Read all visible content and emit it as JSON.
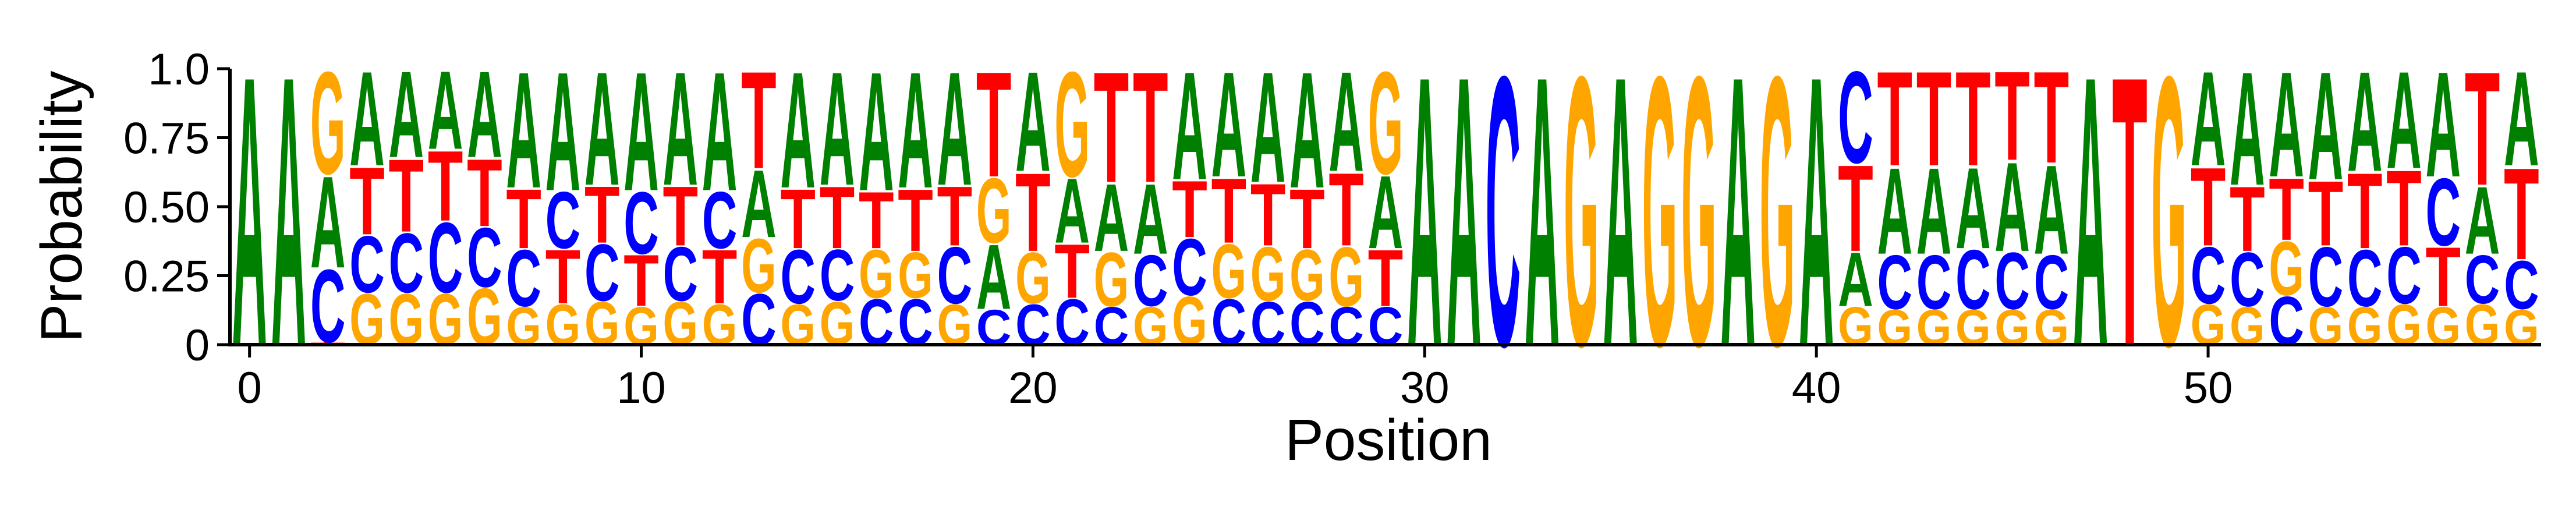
{
  "chart_data": {
    "type": "sequence-logo",
    "title": "",
    "xlabel": "Position",
    "ylabel": "Probability",
    "xlim": [
      -0.5,
      58.5
    ],
    "ylim": [
      0,
      1
    ],
    "xticks": [
      0,
      10,
      20,
      30,
      40,
      50
    ],
    "yticks": [
      0,
      0.25,
      0.5,
      0.75,
      1.0
    ],
    "ytick_labels": [
      "0",
      "0.25",
      "0.50",
      "0.75",
      "1.0"
    ],
    "grid": false,
    "legend": "none",
    "base_colors": {
      "A": "#008000",
      "C": "#0000ff",
      "G": "#ffa500",
      "T": "#ff0000"
    },
    "positions": [
      {
        "A": 1.0,
        "C": 0.0,
        "G": 0.0,
        "T": 0.0
      },
      {
        "A": 1.0,
        "C": 0.0,
        "G": 0.0,
        "T": 0.0
      },
      {
        "A": 0.34,
        "C": 0.27,
        "G": 0.38,
        "T": 0.01
      },
      {
        "A": 0.35,
        "C": 0.21,
        "G": 0.19,
        "T": 0.25
      },
      {
        "A": 0.32,
        "C": 0.22,
        "G": 0.19,
        "T": 0.27
      },
      {
        "A": 0.29,
        "C": 0.26,
        "G": 0.19,
        "T": 0.26
      },
      {
        "A": 0.32,
        "C": 0.22,
        "G": 0.21,
        "T": 0.25
      },
      {
        "A": 0.43,
        "C": 0.21,
        "G": 0.14,
        "T": 0.22
      },
      {
        "A": 0.44,
        "C": 0.21,
        "G": 0.15,
        "T": 0.2
      },
      {
        "A": 0.42,
        "C": 0.21,
        "G": 0.16,
        "T": 0.21
      },
      {
        "A": 0.44,
        "C": 0.23,
        "G": 0.14,
        "T": 0.19
      },
      {
        "A": 0.42,
        "C": 0.2,
        "G": 0.16,
        "T": 0.22
      },
      {
        "A": 0.44,
        "C": 0.21,
        "G": 0.15,
        "T": 0.2
      },
      {
        "A": 0.25,
        "C": 0.19,
        "G": 0.2,
        "T": 0.36
      },
      {
        "A": 0.43,
        "C": 0.2,
        "G": 0.15,
        "T": 0.22
      },
      {
        "A": 0.42,
        "C": 0.19,
        "G": 0.16,
        "T": 0.23
      },
      {
        "A": 0.44,
        "C": 0.17,
        "G": 0.18,
        "T": 0.21
      },
      {
        "A": 0.43,
        "C": 0.17,
        "G": 0.17,
        "T": 0.23
      },
      {
        "A": 0.42,
        "C": 0.21,
        "G": 0.15,
        "T": 0.22
      },
      {
        "A": 0.24,
        "C": 0.13,
        "G": 0.24,
        "T": 0.39
      },
      {
        "A": 0.37,
        "C": 0.15,
        "G": 0.19,
        "T": 0.29
      },
      {
        "A": 0.24,
        "C": 0.17,
        "G": 0.39,
        "T": 0.2
      },
      {
        "A": 0.25,
        "C": 0.14,
        "G": 0.2,
        "T": 0.41
      },
      {
        "A": 0.26,
        "C": 0.19,
        "G": 0.14,
        "T": 0.41
      },
      {
        "A": 0.4,
        "C": 0.21,
        "G": 0.18,
        "T": 0.21
      },
      {
        "A": 0.39,
        "C": 0.17,
        "G": 0.2,
        "T": 0.24
      },
      {
        "A": 0.41,
        "C": 0.16,
        "G": 0.2,
        "T": 0.23
      },
      {
        "A": 0.43,
        "C": 0.16,
        "G": 0.19,
        "T": 0.22
      },
      {
        "A": 0.37,
        "C": 0.14,
        "G": 0.22,
        "T": 0.27
      },
      {
        "A": 0.27,
        "C": 0.14,
        "G": 0.38,
        "T": 0.21
      },
      {
        "A": 1.0,
        "C": 0.0,
        "G": 0.0,
        "T": 0.0
      },
      {
        "A": 1.0,
        "C": 0.0,
        "G": 0.0,
        "T": 0.0
      },
      {
        "A": 0.0,
        "C": 1.0,
        "G": 0.0,
        "T": 0.0
      },
      {
        "A": 1.0,
        "C": 0.0,
        "G": 0.0,
        "T": 0.0
      },
      {
        "A": 0.0,
        "C": 0.0,
        "G": 1.0,
        "T": 0.0
      },
      {
        "A": 1.0,
        "C": 0.0,
        "G": 0.0,
        "T": 0.0
      },
      {
        "A": 0.0,
        "C": 0.0,
        "G": 1.0,
        "T": 0.0
      },
      {
        "A": 0.0,
        "C": 0.0,
        "G": 1.0,
        "T": 0.0
      },
      {
        "A": 1.0,
        "C": 0.0,
        "G": 0.0,
        "T": 0.0
      },
      {
        "A": 0.0,
        "C": 0.0,
        "G": 1.0,
        "T": 0.0
      },
      {
        "A": 1.0,
        "C": 0.0,
        "G": 0.0,
        "T": 0.0
      },
      {
        "A": 0.2,
        "C": 0.34,
        "G": 0.14,
        "T": 0.32
      },
      {
        "A": 0.32,
        "C": 0.2,
        "G": 0.13,
        "T": 0.35
      },
      {
        "A": 0.32,
        "C": 0.2,
        "G": 0.13,
        "T": 0.35
      },
      {
        "A": 0.3,
        "C": 0.22,
        "G": 0.13,
        "T": 0.35
      },
      {
        "A": 0.33,
        "C": 0.21,
        "G": 0.13,
        "T": 0.33
      },
      {
        "A": 0.33,
        "C": 0.2,
        "G": 0.13,
        "T": 0.34
      },
      {
        "A": 1.0,
        "C": 0.0,
        "G": 0.0,
        "T": 0.0
      },
      {
        "A": 0.0,
        "C": 0.0,
        "G": 0.0,
        "T": 1.0
      },
      {
        "A": 0.0,
        "C": 0.0,
        "G": 1.0,
        "T": 0.0
      },
      {
        "A": 0.35,
        "C": 0.21,
        "G": 0.15,
        "T": 0.29
      },
      {
        "A": 0.42,
        "C": 0.2,
        "G": 0.14,
        "T": 0.24
      },
      {
        "A": 0.39,
        "C": 0.18,
        "G": 0.2,
        "T": 0.23
      },
      {
        "A": 0.4,
        "C": 0.22,
        "G": 0.14,
        "T": 0.24
      },
      {
        "A": 0.37,
        "C": 0.21,
        "G": 0.14,
        "T": 0.28
      },
      {
        "A": 0.36,
        "C": 0.21,
        "G": 0.15,
        "T": 0.28
      },
      {
        "A": 0.39,
        "C": 0.25,
        "G": 0.14,
        "T": 0.22
      },
      {
        "A": 0.25,
        "C": 0.18,
        "G": 0.15,
        "T": 0.42
      },
      {
        "A": 0.35,
        "C": 0.18,
        "G": 0.13,
        "T": 0.34
      }
    ]
  }
}
